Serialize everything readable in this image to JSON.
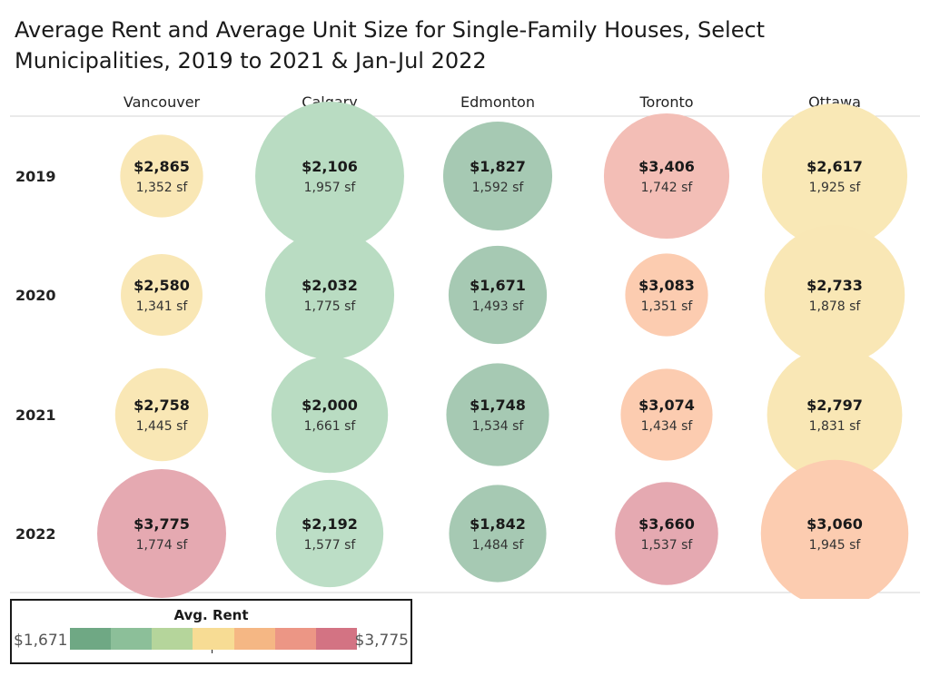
{
  "title": "Average Rent and Average Unit Size for Single-Family Houses, Select Municipalities, 2019 to 2021 & Jan-Jul 2022",
  "chart_data": {
    "type": "bubble-matrix",
    "columns": [
      "Vancouver",
      "Calgary",
      "Edmonton",
      "Toronto",
      "Ottawa"
    ],
    "rows": [
      "2019",
      "2020",
      "2021",
      "2022"
    ],
    "cells": [
      [
        {
          "rent": 2865,
          "rent_label": "$2,865",
          "size": 1352,
          "size_label": "1,352 sf"
        },
        {
          "rent": 2106,
          "rent_label": "$2,106",
          "size": 1957,
          "size_label": "1,957 sf"
        },
        {
          "rent": 1827,
          "rent_label": "$1,827",
          "size": 1592,
          "size_label": "1,592 sf"
        },
        {
          "rent": 3406,
          "rent_label": "$3,406",
          "size": 1742,
          "size_label": "1,742 sf"
        },
        {
          "rent": 2617,
          "rent_label": "$2,617",
          "size": 1925,
          "size_label": "1,925 sf"
        }
      ],
      [
        {
          "rent": 2580,
          "rent_label": "$2,580",
          "size": 1341,
          "size_label": "1,341 sf"
        },
        {
          "rent": 2032,
          "rent_label": "$2,032",
          "size": 1775,
          "size_label": "1,775 sf"
        },
        {
          "rent": 1671,
          "rent_label": "$1,671",
          "size": 1493,
          "size_label": "1,493 sf"
        },
        {
          "rent": 3083,
          "rent_label": "$3,083",
          "size": 1351,
          "size_label": "1,351 sf"
        },
        {
          "rent": 2733,
          "rent_label": "$2,733",
          "size": 1878,
          "size_label": "1,878 sf"
        }
      ],
      [
        {
          "rent": 2758,
          "rent_label": "$2,758",
          "size": 1445,
          "size_label": "1,445 sf"
        },
        {
          "rent": 2000,
          "rent_label": "$2,000",
          "size": 1661,
          "size_label": "1,661 sf"
        },
        {
          "rent": 1748,
          "rent_label": "$1,748",
          "size": 1534,
          "size_label": "1,534 sf"
        },
        {
          "rent": 3074,
          "rent_label": "$3,074",
          "size": 1434,
          "size_label": "1,434 sf"
        },
        {
          "rent": 2797,
          "rent_label": "$2,797",
          "size": 1831,
          "size_label": "1,831 sf"
        }
      ],
      [
        {
          "rent": 3775,
          "rent_label": "$3,775",
          "size": 1774,
          "size_label": "1,774 sf"
        },
        {
          "rent": 2192,
          "rent_label": "$2,192",
          "size": 1577,
          "size_label": "1,577 sf"
        },
        {
          "rent": 1842,
          "rent_label": "$1,842",
          "size": 1484,
          "size_label": "1,484 sf"
        },
        {
          "rent": 3660,
          "rent_label": "$3,660",
          "size": 1537,
          "size_label": "1,537 sf"
        },
        {
          "rent": 3060,
          "rent_label": "$3,060",
          "size": 1945,
          "size_label": "1,945 sf"
        }
      ]
    ],
    "color_encoding": "Avg. Rent",
    "size_encoding": "Avg. Unit Size",
    "legend": {
      "title": "Avg. Rent",
      "min_label": "$1,671",
      "max_label": "$3,775",
      "min": 1671,
      "max": 3775,
      "colors": [
        "#6fa884",
        "#8cbf99",
        "#b5d59b",
        "#f7dc94",
        "#f5b784",
        "#ec9685",
        "#d37383"
      ]
    }
  },
  "cell_colors": [
    [
      "#f9e7b5",
      "#b9dcc2",
      "#a6c9b3",
      "#f3beb6",
      "#f9e8b6"
    ],
    [
      "#f9e7b5",
      "#b9dcc2",
      "#a6c9b3",
      "#fcccb0",
      "#f9e7b5"
    ],
    [
      "#f9e7b5",
      "#b9dcc2",
      "#a6c9b3",
      "#fcccb0",
      "#f9e7b5"
    ],
    [
      "#e5a9b1",
      "#bcdec6",
      "#a6c9b3",
      "#e5a9b1",
      "#fcccb0"
    ]
  ]
}
